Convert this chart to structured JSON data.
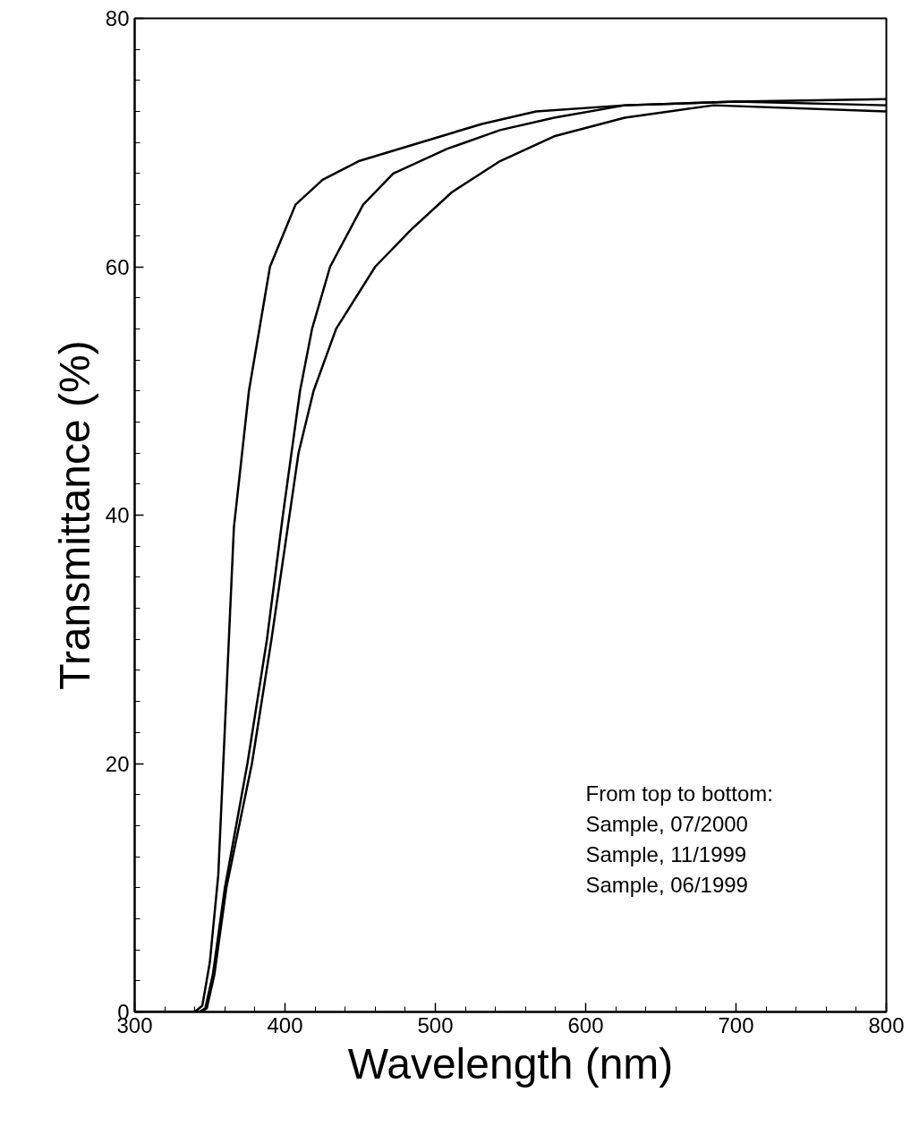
{
  "chart_data": {
    "type": "line",
    "xlabel": "Wavelength (nm)",
    "ylabel": "Transmittance (%)",
    "xlim": [
      300,
      800
    ],
    "ylim": [
      0,
      80
    ],
    "xticks": [
      300,
      {
        "value": 320,
        "label": null
      },
      {
        "value": 340,
        "label": null
      },
      {
        "value": 360,
        "label": null
      },
      {
        "value": 380,
        "label": null
      },
      400,
      {
        "value": 420,
        "label": null
      },
      {
        "value": 440,
        "label": null
      },
      {
        "value": 460,
        "label": null
      },
      {
        "value": 480,
        "label": null
      },
      500,
      {
        "value": 520,
        "label": null
      },
      {
        "value": 540,
        "label": null
      },
      {
        "value": 560,
        "label": null
      },
      {
        "value": 580,
        "label": null
      },
      600,
      {
        "value": 620,
        "label": null
      },
      {
        "value": 640,
        "label": null
      },
      {
        "value": 660,
        "label": null
      },
      {
        "value": 680,
        "label": null
      },
      700,
      {
        "value": 720,
        "label": null
      },
      {
        "value": 740,
        "label": null
      },
      {
        "value": 760,
        "label": null
      },
      {
        "value": 780,
        "label": null
      },
      800
    ],
    "yticks": [
      0,
      {
        "value": 2.5,
        "label": null
      },
      {
        "value": 5,
        "label": null
      },
      {
        "value": 7.5,
        "label": null
      },
      {
        "value": 10,
        "label": null
      },
      {
        "value": 12.5,
        "label": null
      },
      {
        "value": 15,
        "label": null
      },
      {
        "value": 17.5,
        "label": null
      },
      20,
      {
        "value": 22.5,
        "label": null
      },
      {
        "value": 25,
        "label": null
      },
      {
        "value": 27.5,
        "label": null
      },
      {
        "value": 30,
        "label": null
      },
      {
        "value": 32.5,
        "label": null
      },
      {
        "value": 35,
        "label": null
      },
      {
        "value": 37.5,
        "label": null
      },
      40,
      {
        "value": 42.5,
        "label": null
      },
      {
        "value": 45,
        "label": null
      },
      {
        "value": 47.5,
        "label": null
      },
      {
        "value": 50,
        "label": null
      },
      {
        "value": 52.5,
        "label": null
      },
      {
        "value": 55,
        "label": null
      },
      {
        "value": 57.5,
        "label": null
      },
      60,
      {
        "value": 62.5,
        "label": null
      },
      {
        "value": 65,
        "label": null
      },
      {
        "value": 67.5,
        "label": null
      },
      {
        "value": 70,
        "label": null
      },
      {
        "value": 72.5,
        "label": null
      },
      {
        "value": 75,
        "label": null
      },
      {
        "value": 77.5,
        "label": null
      },
      80
    ],
    "grid": false,
    "marker": "none",
    "line_style": "solid",
    "series": [
      {
        "color": "#000000",
        "x": [
          300,
          340,
          345,
          350,
          355.6,
          366,
          376,
          390,
          407,
          425,
          449,
          490,
          531,
          567,
          626,
          700,
          800
        ],
        "values": [
          0,
          0,
          0.5,
          4,
          11,
          39,
          50,
          60,
          65,
          67,
          68.5,
          70,
          71.5,
          72.5,
          73,
          73.3,
          73.5
        ]
      },
      {
        "color": "#000000",
        "x": [
          300,
          343,
          347,
          352,
          360,
          375,
          388,
          398.6,
          410,
          418,
          430,
          452,
          472,
          508,
          543,
          579,
          626,
          700,
          800
        ],
        "values": [
          0,
          0,
          0.3,
          3,
          10,
          20,
          30,
          40,
          50,
          55,
          60,
          65,
          67.5,
          69.5,
          71,
          72,
          73,
          73.3,
          73
        ]
      },
      {
        "color": "#000000",
        "x": [
          300,
          344,
          348,
          353,
          361,
          378,
          391,
          403,
          409,
          419,
          434,
          460,
          484,
          511,
          543,
          579,
          626,
          685,
          800
        ],
        "values": [
          0,
          0,
          0.3,
          3,
          10,
          20,
          30,
          40,
          45,
          50,
          55,
          60,
          63,
          66,
          68.5,
          70.5,
          72,
          73,
          72.5
        ]
      }
    ],
    "annotations": [
      "From top to bottom:",
      "Sample, 07/2000",
      "Sample, 11/1999",
      "Sample, 06/1999"
    ]
  }
}
